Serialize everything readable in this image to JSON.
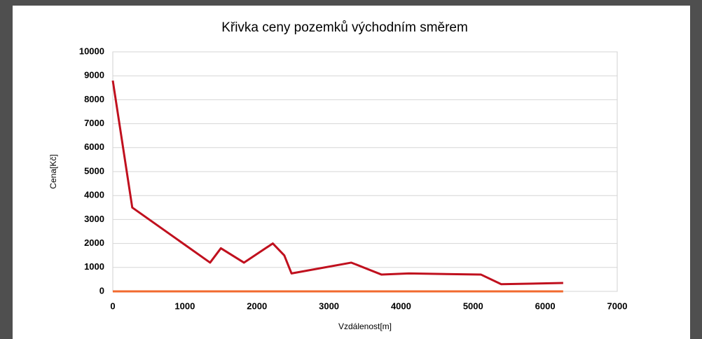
{
  "chart_data": {
    "type": "line",
    "title": "Křivka ceny pozemků východním směrem",
    "x_label": "Vzdálenost[m]",
    "y_label": "Cena[Kč]",
    "x": [
      0,
      270,
      1350,
      1500,
      1820,
      2220,
      2380,
      2480,
      3310,
      3730,
      4110,
      5110,
      5390,
      6250
    ],
    "series": [
      {
        "color": "#c0101e",
        "values": [
          8800,
          3500,
          1200,
          1800,
          1200,
          2000,
          1500,
          750,
          1200,
          700,
          750,
          700,
          300,
          350
        ]
      },
      {
        "color": "#f26a2e",
        "values": [
          0,
          0,
          0,
          0,
          0,
          0,
          0,
          0,
          0,
          0,
          0,
          0,
          0,
          0
        ]
      }
    ],
    "xlim": [
      0,
      7000
    ],
    "xticks": [
      0,
      1000,
      2000,
      3000,
      4000,
      5000,
      6000,
      7000
    ],
    "ylim": [
      0,
      10000
    ],
    "yticks": [
      0,
      1000,
      2000,
      3000,
      4000,
      5000,
      6000,
      7000,
      8000,
      9000,
      10000
    ],
    "grid": true
  }
}
